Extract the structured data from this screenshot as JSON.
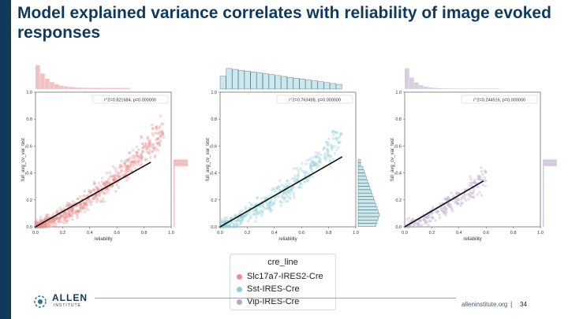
{
  "slide": {
    "title": "Model explained variance correlates with reliability of image evoked responses",
    "footer_url": "alleninstitute.org",
    "footer_sep": "|",
    "page_number": "34",
    "logo_text": "ALLEN",
    "logo_sub": "INSTITUTE"
  },
  "colors": {
    "sidebar": "#0f3a5c",
    "series": [
      "#e8908f",
      "#8ecdd6",
      "#b7a6c9"
    ]
  },
  "legend": {
    "title": "cre_line",
    "items": [
      "Slc17a7-IRES2-Cre",
      "Sst-IRES-Cre",
      "Vip-IRES-Cre"
    ]
  },
  "chart_data": [
    {
      "type": "scatter",
      "series_name": "Slc17a7-IRES2-Cre",
      "annotation": "r^2=0.821684, p=0.000000",
      "xlabel": "reliability",
      "ylabel": "full_avg_cv_var_test",
      "xlim": [
        0.0,
        1.0
      ],
      "ylim": [
        0.0,
        1.0
      ],
      "xticks": [
        "0.0",
        "0.2",
        "0.4",
        "0.6",
        "0.8",
        "1.0"
      ],
      "yticks": [
        "0.0",
        "0.2",
        "0.4",
        "0.6",
        "0.8",
        "1.0"
      ],
      "regression_line": {
        "x": [
          0.0,
          0.85
        ],
        "y": [
          0.0,
          0.48
        ]
      },
      "density": {
        "x_max": 0.95,
        "spread": 0.06,
        "curve": 1.6
      }
    },
    {
      "type": "scatter",
      "series_name": "Sst-IRES-Cre",
      "annotation": "r^2=0.763498, p=0.000000",
      "xlabel": "reliability",
      "ylabel": "full_avg_cv_var_test",
      "xlim": [
        0.0,
        1.0
      ],
      "ylim": [
        0.0,
        1.0
      ],
      "xticks": [
        "0.0",
        "0.2",
        "0.4",
        "0.6",
        "0.8",
        "1.0"
      ],
      "yticks": [
        "0.0",
        "0.2",
        "0.4",
        "0.6",
        "0.8",
        "1.0"
      ],
      "regression_line": {
        "x": [
          0.0,
          0.9
        ],
        "y": [
          0.0,
          0.52
        ]
      },
      "density": {
        "x_max": 0.9,
        "spread": 0.07,
        "curve": 1.2
      }
    },
    {
      "type": "scatter",
      "series_name": "Vip-IRES-Cre",
      "annotation": "r^2=0.244516, p=0.000000",
      "xlabel": "reliability",
      "ylabel": "full_avg_cv_var_test",
      "xlim": [
        0.0,
        1.0
      ],
      "ylim": [
        0.0,
        1.0
      ],
      "xticks": [
        "0.0",
        "0.2",
        "0.4",
        "0.6",
        "0.8",
        "1.0"
      ],
      "yticks": [
        "0.0",
        "0.2",
        "0.4",
        "0.6",
        "0.8",
        "1.0"
      ],
      "regression_line": {
        "x": [
          0.0,
          0.58
        ],
        "y": [
          0.0,
          0.34
        ]
      },
      "density": {
        "x_max": 0.6,
        "spread": 0.06,
        "curve": 1.0
      }
    }
  ]
}
